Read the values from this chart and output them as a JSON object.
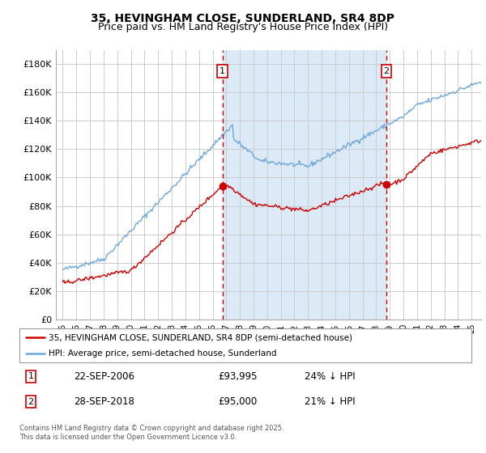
{
  "title": "35, HEVINGHAM CLOSE, SUNDERLAND, SR4 8DP",
  "subtitle": "Price paid vs. HM Land Registry's House Price Index (HPI)",
  "ylabel_ticks": [
    "£0",
    "£20K",
    "£40K",
    "£60K",
    "£80K",
    "£100K",
    "£120K",
    "£140K",
    "£160K",
    "£180K"
  ],
  "ytick_vals": [
    0,
    20000,
    40000,
    60000,
    80000,
    100000,
    120000,
    140000,
    160000,
    180000
  ],
  "ylim": [
    0,
    190000
  ],
  "xlim_start": 1994.5,
  "xlim_end": 2025.7,
  "vline1_x": 2006.72,
  "vline2_x": 2018.75,
  "sale1_price_y": 93995,
  "sale2_price_y": 95000,
  "sale1_label": "1",
  "sale1_date": "22-SEP-2006",
  "sale1_price": "£93,995",
  "sale1_hpi": "24% ↓ HPI",
  "sale2_label": "2",
  "sale2_date": "28-SEP-2018",
  "sale2_price": "£95,000",
  "sale2_hpi": "21% ↓ HPI",
  "legend_line1": "35, HEVINGHAM CLOSE, SUNDERLAND, SR4 8DP (semi-detached house)",
  "legend_line2": "HPI: Average price, semi-detached house, Sunderland",
  "footnote": "Contains HM Land Registry data © Crown copyright and database right 2025.\nThis data is licensed under the Open Government Licence v3.0.",
  "line_color_red": "#cc0000",
  "line_color_blue": "#6fa8dc",
  "shade_color": "#dce9f7",
  "bg_color": "#ffffff",
  "grid_color": "#cccccc",
  "title_fontsize": 10,
  "subtitle_fontsize": 9
}
